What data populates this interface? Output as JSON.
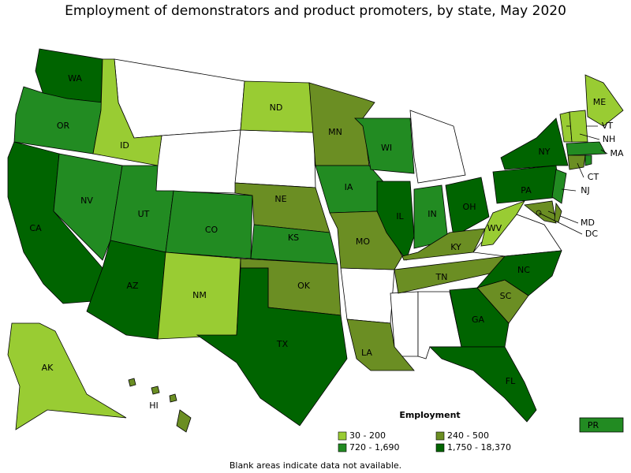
{
  "title": "Employment of demonstrators and product promoters, by state, May 2020",
  "legend": {
    "title": "Employment",
    "items": [
      {
        "label": "30 - 200",
        "color": "#99cc33"
      },
      {
        "label": "240 - 500",
        "color": "#6b8e23"
      },
      {
        "label": "720 - 1,690",
        "color": "#228b22"
      },
      {
        "label": "1,750 - 18,370",
        "color": "#006400"
      }
    ]
  },
  "states": [
    {
      "label": "WA",
      "color": "#006400"
    },
    {
      "label": "OR",
      "color": "#228b22"
    },
    {
      "label": "CA",
      "color": "#006400"
    },
    {
      "label": "NV",
      "color": "#228b22"
    },
    {
      "label": "ID",
      "color": "#99cc33"
    },
    {
      "label": "UT",
      "color": "#228b22"
    },
    {
      "label": "AZ",
      "color": "#006400"
    },
    {
      "label": "CO",
      "color": "#228b22"
    },
    {
      "label": "NM",
      "color": "#99cc33"
    },
    {
      "label": "ND",
      "color": "#99cc33"
    },
    {
      "label": "NE",
      "color": "#6b8e23"
    },
    {
      "label": "KS",
      "color": "#228b22"
    },
    {
      "label": "OK",
      "color": "#6b8e23"
    },
    {
      "label": "TX",
      "color": "#006400"
    },
    {
      "label": "MN",
      "color": "#6b8e23"
    },
    {
      "label": "IA",
      "color": "#228b22"
    },
    {
      "label": "MO",
      "color": "#6b8e23"
    },
    {
      "label": "LA",
      "color": "#6b8e23"
    },
    {
      "label": "WI",
      "color": "#228b22"
    },
    {
      "label": "IL",
      "color": "#006400"
    },
    {
      "label": "IN",
      "color": "#228b22"
    },
    {
      "label": "OH",
      "color": "#006400"
    },
    {
      "label": "KY",
      "color": "#6b8e23"
    },
    {
      "label": "TN",
      "color": "#6b8e23"
    },
    {
      "label": "GA",
      "color": "#006400"
    },
    {
      "label": "FL",
      "color": "#006400"
    },
    {
      "label": "SC",
      "color": "#6b8e23"
    },
    {
      "label": "NC",
      "color": "#006400"
    },
    {
      "label": "WV",
      "color": "#99cc33"
    },
    {
      "label": "PA",
      "color": "#006400"
    },
    {
      "label": "NY",
      "color": "#006400"
    },
    {
      "label": "NJ",
      "color": "#228b22"
    },
    {
      "label": "MD",
      "color": "#6b8e23"
    },
    {
      "label": null,
      "color": "#6b8e23"
    },
    {
      "label": "ME",
      "color": "#99cc33"
    },
    {
      "label": "VT",
      "color": "#99cc33"
    },
    {
      "label": "NH",
      "color": "#99cc33"
    },
    {
      "label": "MA",
      "color": "#228b22"
    },
    {
      "label": "CT",
      "color": "#6b8e23"
    },
    {
      "label": null,
      "color": "#228b22"
    },
    {
      "label": "AK",
      "color": "#99cc33"
    },
    {
      "label": "HI",
      "color": "#6b8e23"
    },
    {
      "label": "PR",
      "color": "#228b22"
    },
    {
      "label": "DC",
      "color": "#6b8e23"
    }
  ],
  "footnote": "Blank areas indicate data not available."
}
